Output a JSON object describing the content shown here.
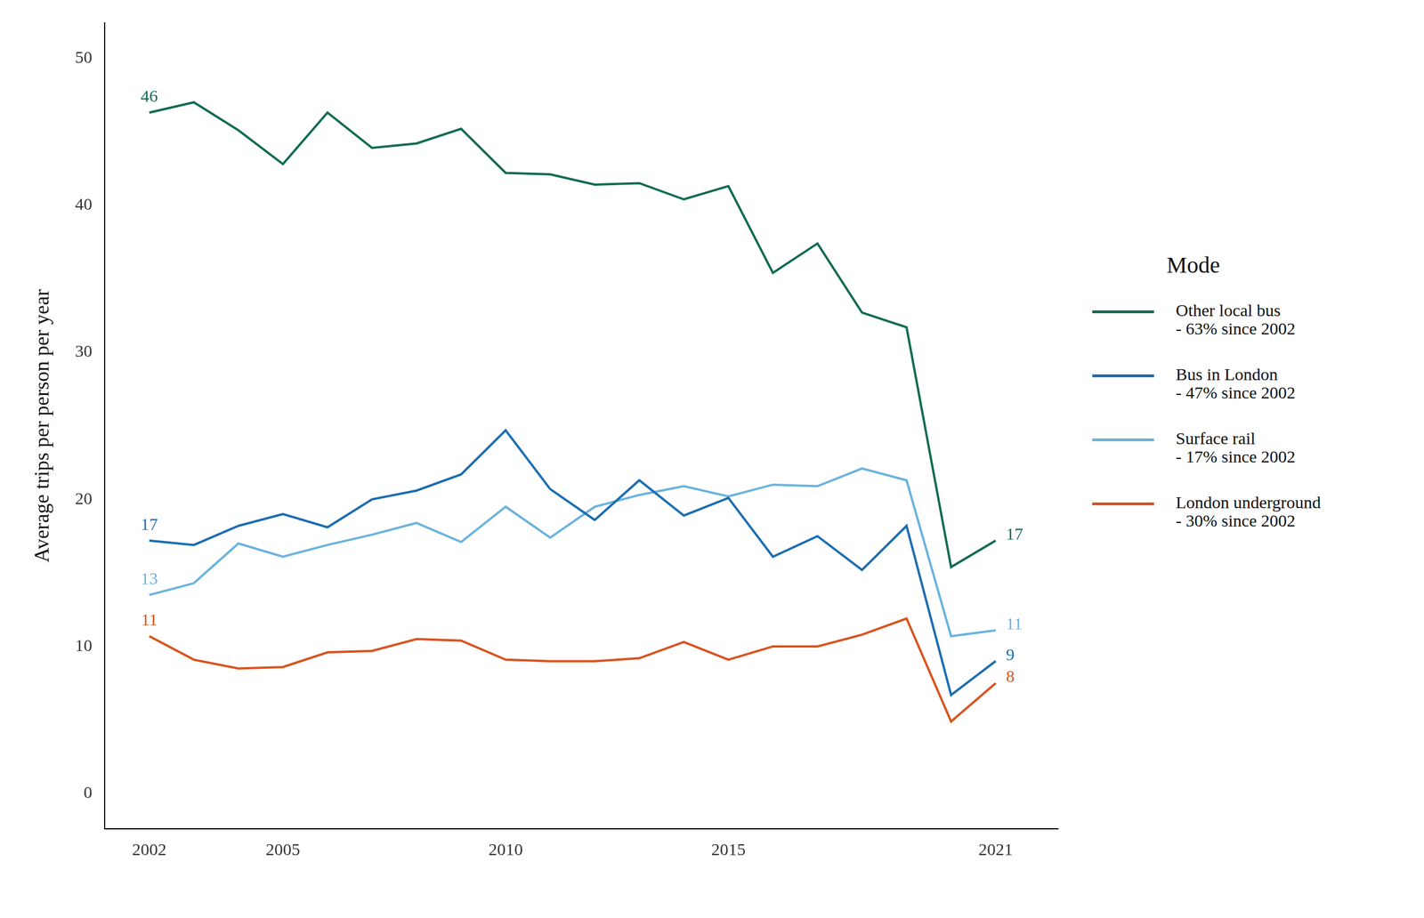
{
  "chart_data": {
    "type": "line",
    "y_label": "Average trips per person per year",
    "x": [
      2002,
      2003,
      2004,
      2005,
      2006,
      2007,
      2008,
      2009,
      2010,
      2011,
      2012,
      2013,
      2014,
      2015,
      2016,
      2017,
      2018,
      2019,
      2020,
      2021
    ],
    "series": [
      {
        "name": "Other local bus\n- 63% since 2002",
        "color": "#126b52",
        "start_label": 46,
        "end_label": 17,
        "values": [
          46.3,
          47.0,
          45.1,
          42.8,
          46.3,
          43.9,
          44.2,
          45.2,
          42.2,
          42.1,
          41.4,
          41.5,
          40.4,
          41.3,
          35.4,
          37.4,
          32.7,
          31.7,
          15.4,
          17.2
        ]
      },
      {
        "name": "Bus in London\n- 47% since 2002",
        "color": "#1b6db1",
        "start_label": 17,
        "end_label": 9,
        "values": [
          17.2,
          16.9,
          18.2,
          19.0,
          18.1,
          20.0,
          20.6,
          21.7,
          24.7,
          20.7,
          18.6,
          21.3,
          18.9,
          20.1,
          16.1,
          17.5,
          15.2,
          18.2,
          6.7,
          9.0
        ]
      },
      {
        "name": "Surface rail\n- 17% since 2002",
        "color": "#6bb3dd",
        "start_label": 13,
        "end_label": 11,
        "values": [
          13.5,
          14.3,
          17.0,
          16.1,
          16.9,
          17.6,
          18.4,
          17.1,
          19.5,
          17.4,
          19.5,
          20.3,
          20.9,
          20.2,
          21.0,
          20.9,
          22.1,
          21.3,
          10.7,
          11.1
        ]
      },
      {
        "name": "London underground\n- 30% since 2002",
        "color": "#d9531e",
        "start_label": 11,
        "end_label": 8,
        "values": [
          10.7,
          9.1,
          8.5,
          8.6,
          9.6,
          9.7,
          10.5,
          10.4,
          9.1,
          9.0,
          9.0,
          9.2,
          10.3,
          9.1,
          10.0,
          10.0,
          10.8,
          11.9,
          4.9,
          7.5
        ]
      }
    ],
    "xlim": [
      2001,
      2022.4
    ],
    "xticks": [
      2002,
      2005,
      2010,
      2015,
      2021
    ],
    "ylim": [
      -2.4,
      52.4
    ],
    "yticks": [
      0,
      10,
      20,
      30,
      40,
      50
    ],
    "grid": false,
    "legend": "right",
    "legend_title": "Mode"
  }
}
